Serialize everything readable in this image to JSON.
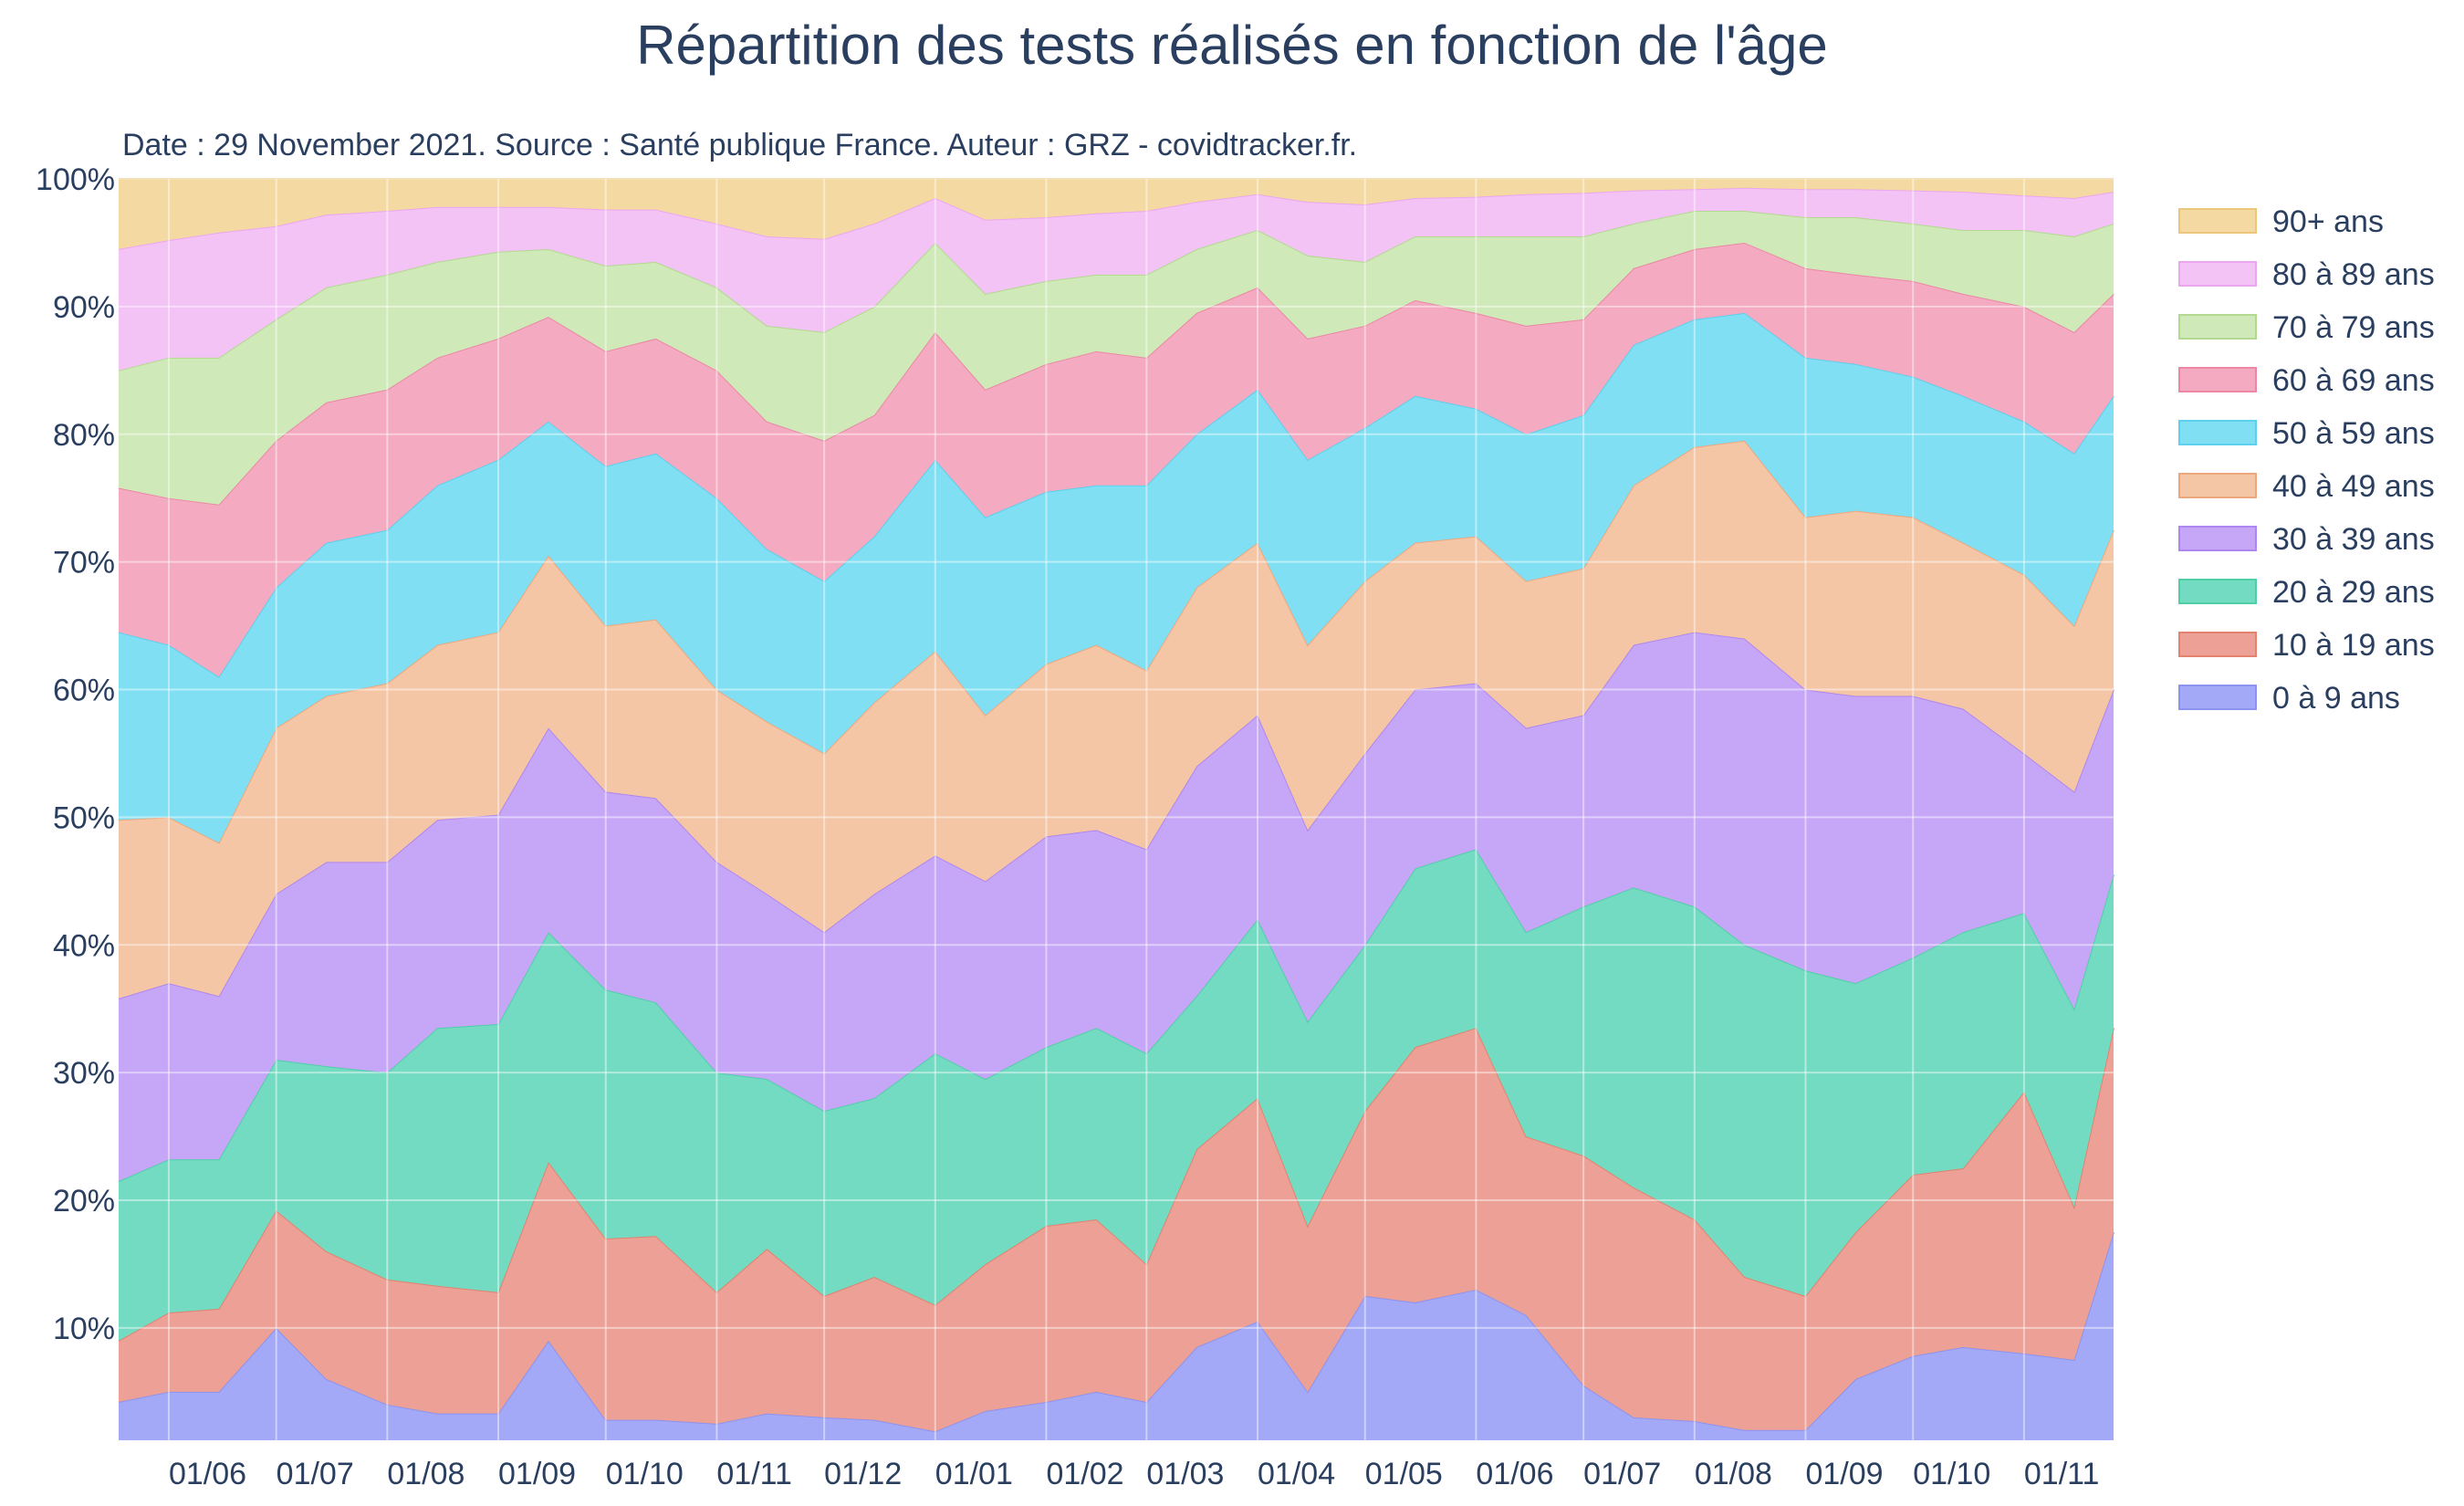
{
  "chart_data": {
    "type": "area",
    "stacked": true,
    "normalized": true,
    "title": "Répartition des tests  réalisés en fonction de l'âge",
    "subtitle": "Date : 29 November 2021. Source : Santé publique France. Auteur : GRZ - covidtracker.fr.",
    "xlabel": "",
    "ylabel": "",
    "ylim": [
      0,
      100
    ],
    "y_ticks": [
      "10%",
      "20%",
      "30%",
      "40%",
      "50%",
      "60%",
      "70%",
      "80%",
      "90%",
      "100%"
    ],
    "x_tick_labels": [
      "01/06",
      "01/07",
      "01/08",
      "01/09",
      "01/10",
      "01/11",
      "01/12",
      "01/01",
      "01/02",
      "01/03",
      "01/04",
      "01/05",
      "01/06",
      "01/07",
      "01/08",
      "01/09",
      "01/10",
      "01/11"
    ],
    "x_tick_dates": [
      "2020-06-01",
      "2020-07-01",
      "2020-08-01",
      "2020-09-01",
      "2020-10-01",
      "2020-11-01",
      "2020-12-01",
      "2021-01-01",
      "2021-02-01",
      "2021-03-01",
      "2021-04-01",
      "2021-05-01",
      "2021-06-01",
      "2021-07-01",
      "2021-08-01",
      "2021-09-01",
      "2021-10-01",
      "2021-11-01"
    ],
    "x_range": [
      "2020-05-18",
      "2021-11-26"
    ],
    "grid": true,
    "legend_position": "right",
    "dates": [
      "2020-05-18",
      "2020-06-01",
      "2020-06-15",
      "2020-07-01",
      "2020-07-15",
      "2020-08-01",
      "2020-08-15",
      "2020-09-01",
      "2020-09-15",
      "2020-10-01",
      "2020-10-15",
      "2020-11-01",
      "2020-11-15",
      "2020-12-01",
      "2020-12-15",
      "2021-01-01",
      "2021-01-15",
      "2021-02-01",
      "2021-02-15",
      "2021-03-01",
      "2021-03-15",
      "2021-04-01",
      "2021-04-15",
      "2021-05-01",
      "2021-05-15",
      "2021-06-01",
      "2021-06-15",
      "2021-07-01",
      "2021-07-15",
      "2021-08-01",
      "2021-08-15",
      "2021-09-01",
      "2021-09-15",
      "2021-10-01",
      "2021-10-15",
      "2021-11-01",
      "2021-11-15",
      "2021-11-26"
    ],
    "series": [
      {
        "name": "0 à 9 ans",
        "color": "#a3a9f7",
        "line": "#8c93ef",
        "values": [
          4.2,
          5.0,
          5.0,
          10.0,
          6.0,
          4.0,
          3.3,
          3.3,
          9.0,
          2.8,
          2.8,
          2.5,
          3.3,
          3.0,
          2.8,
          1.9,
          3.5,
          4.2,
          5.0,
          4.2,
          8.5,
          10.5,
          5.0,
          12.5,
          12.0,
          13.0,
          11.0,
          5.5,
          3.0,
          2.7,
          2.0,
          2.0,
          6.0,
          7.8,
          8.5,
          8.0,
          7.5,
          17.5
        ]
      },
      {
        "name": "10 à 19 ans",
        "color": "#eca096",
        "line": "#e2826f",
        "values": [
          9.0,
          11.2,
          11.5,
          19.2,
          16.0,
          13.8,
          13.3,
          12.8,
          23.0,
          17.0,
          17.2,
          12.8,
          16.2,
          12.5,
          14.0,
          11.8,
          15.0,
          18.0,
          18.5,
          15.0,
          24.0,
          28.0,
          18.0,
          27.0,
          32.0,
          33.5,
          25.0,
          23.5,
          21.0,
          18.5,
          14.0,
          12.5,
          17.5,
          22.0,
          22.5,
          28.5,
          19.5,
          33.5
        ]
      },
      {
        "name": "20 à 29 ans",
        "color": "#74dbc3",
        "line": "#4fcfa6",
        "values": [
          21.5,
          23.2,
          23.2,
          31.0,
          30.5,
          30.0,
          33.5,
          33.8,
          41.0,
          36.5,
          35.5,
          30.0,
          29.5,
          27.0,
          28.0,
          31.5,
          29.5,
          32.0,
          33.5,
          31.5,
          36.0,
          42.0,
          34.0,
          40.0,
          46.0,
          47.5,
          41.0,
          43.0,
          44.5,
          43.0,
          40.0,
          38.0,
          37.0,
          39.0,
          41.0,
          42.5,
          35.0,
          45.5
        ]
      },
      {
        "name": "30 à 39 ans",
        "color": "#c6a7f7",
        "line": "#ae86f1",
        "values": [
          35.8,
          37.0,
          36.0,
          44.0,
          46.5,
          46.5,
          49.8,
          50.2,
          57.0,
          52.0,
          51.5,
          46.5,
          44.0,
          41.0,
          44.0,
          47.0,
          45.0,
          48.5,
          49.0,
          47.5,
          54.0,
          58.0,
          49.0,
          55.0,
          60.0,
          60.5,
          57.0,
          58.0,
          63.5,
          64.5,
          64.0,
          60.0,
          59.5,
          59.5,
          58.5,
          55.0,
          52.0,
          60.0
        ]
      },
      {
        "name": "40 à 49 ans",
        "color": "#f4c6a6",
        "line": "#eda77d",
        "values": [
          49.8,
          50.0,
          48.0,
          57.0,
          59.5,
          60.5,
          63.5,
          64.5,
          70.5,
          65.0,
          65.5,
          60.0,
          57.5,
          55.0,
          59.0,
          63.0,
          58.0,
          62.0,
          63.5,
          61.5,
          68.0,
          71.5,
          63.5,
          68.5,
          71.5,
          72.0,
          68.5,
          69.5,
          76.0,
          79.0,
          79.5,
          73.5,
          74.0,
          73.5,
          71.5,
          69.0,
          65.0,
          72.5
        ]
      },
      {
        "name": "50 à 59 ans",
        "color": "#80dff3",
        "line": "#5cd0ec",
        "values": [
          64.5,
          63.5,
          61.0,
          68.0,
          71.5,
          72.5,
          76.0,
          78.0,
          81.0,
          77.5,
          78.5,
          75.0,
          71.0,
          68.5,
          72.0,
          78.0,
          73.5,
          75.5,
          76.0,
          76.0,
          80.0,
          83.5,
          78.0,
          80.5,
          83.0,
          82.0,
          80.0,
          81.5,
          87.0,
          89.0,
          89.5,
          86.0,
          85.5,
          84.5,
          83.0,
          81.0,
          78.5,
          83.0
        ]
      },
      {
        "name": "60 à 69 ans",
        "color": "#f4aac1",
        "line": "#ec87a4",
        "values": [
          75.8,
          75.0,
          74.5,
          79.5,
          82.5,
          83.5,
          86.0,
          87.5,
          89.2,
          86.5,
          87.5,
          85.0,
          81.0,
          79.5,
          81.5,
          88.0,
          83.5,
          85.5,
          86.5,
          86.0,
          89.5,
          91.5,
          87.5,
          88.5,
          90.5,
          89.5,
          88.5,
          89.0,
          93.0,
          94.5,
          95.0,
          93.0,
          92.5,
          92.0,
          91.0,
          90.0,
          88.0,
          91.0
        ]
      },
      {
        "name": "70 à 79 ans",
        "color": "#cfe9b8",
        "line": "#b2d98f",
        "values": [
          85.0,
          86.0,
          86.0,
          89.0,
          91.5,
          92.5,
          93.5,
          94.3,
          94.5,
          93.2,
          93.5,
          91.5,
          88.5,
          88.0,
          90.0,
          95.0,
          91.0,
          92.0,
          92.5,
          92.5,
          94.5,
          96.0,
          94.0,
          93.5,
          95.5,
          95.5,
          95.5,
          95.5,
          96.5,
          97.5,
          97.5,
          97.0,
          97.0,
          96.5,
          96.0,
          96.0,
          95.5,
          96.5
        ]
      },
      {
        "name": "80 à 89 ans",
        "color": "#f3c3f6",
        "line": "#eba6f0",
        "values": [
          94.5,
          95.2,
          95.8,
          96.3,
          97.2,
          97.5,
          97.8,
          97.8,
          97.8,
          97.6,
          97.6,
          96.5,
          95.5,
          95.3,
          96.5,
          98.5,
          96.8,
          97.0,
          97.3,
          97.5,
          98.2,
          98.8,
          98.2,
          98.0,
          98.5,
          98.6,
          98.8,
          98.9,
          99.1,
          99.2,
          99.3,
          99.2,
          99.2,
          99.1,
          99.0,
          98.7,
          98.5,
          99.0
        ]
      },
      {
        "name": "90+ ans",
        "color": "#f4daa2",
        "line": "#ecc77b",
        "values": [
          100,
          100,
          100,
          100,
          100,
          100,
          100,
          100,
          100,
          100,
          100,
          100,
          100,
          100,
          100,
          100,
          100,
          100,
          100,
          100,
          100,
          100,
          100,
          100,
          100,
          100,
          100,
          100,
          100,
          100,
          100,
          100,
          100,
          100,
          100,
          100,
          100,
          100
        ]
      }
    ]
  }
}
